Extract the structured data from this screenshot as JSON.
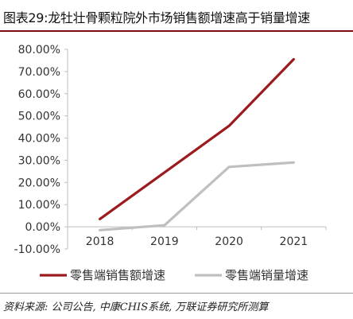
{
  "figure": {
    "title": "图表29:龙牡壮骨颗粒院外市场销售额增速高于销量增速",
    "source": "资料来源: 公司公告, 中康CHIS系统, 万联证券研究所测算"
  },
  "colors": {
    "sales_line": "#9b1b1e",
    "volume_line": "#bfbfbf",
    "title_rule": "#7a0c10"
  },
  "chart_data": {
    "type": "line",
    "categories": [
      "2018",
      "2019",
      "2020",
      "2021"
    ],
    "ylim": [
      -10,
      80
    ],
    "yticks": [
      -10,
      0,
      10,
      20,
      30,
      40,
      50,
      60,
      70,
      80
    ],
    "ytick_labels": [
      "-10.00%",
      "0.00%",
      "10.00%",
      "20.00%",
      "30.00%",
      "40.00%",
      "50.00%",
      "60.00%",
      "70.00%",
      "80.00%"
    ],
    "grid": false,
    "legend_position": "bottom",
    "series": [
      {
        "name": "零售端销售额增速",
        "values": [
          3.5,
          24.5,
          45.5,
          75.5
        ],
        "color_key": "sales_line"
      },
      {
        "name": "零售端销量增速",
        "values": [
          -1.5,
          0.7,
          27.0,
          29.0
        ],
        "color_key": "volume_line"
      }
    ]
  }
}
